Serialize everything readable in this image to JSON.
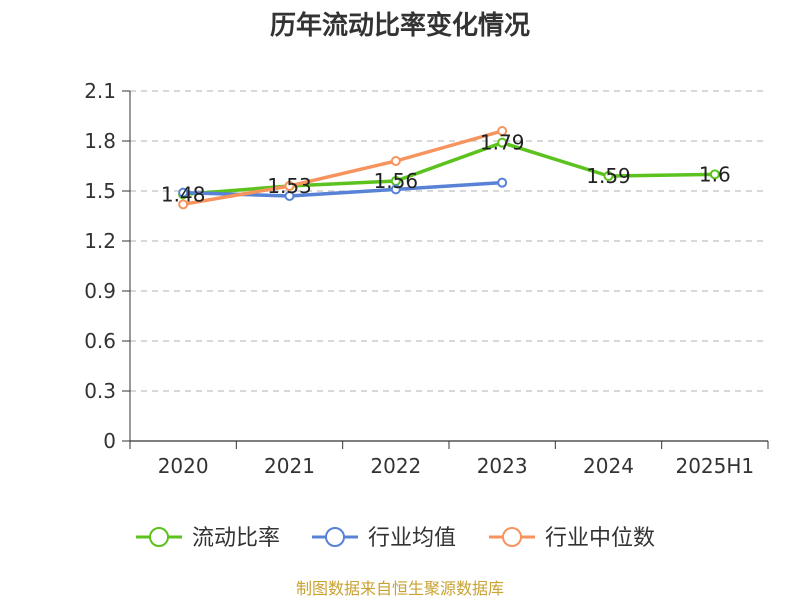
{
  "footer": {
    "source": "制图数据来自恒生聚源数据库"
  },
  "chart_data": {
    "type": "line",
    "title": "历年流动比率变化情况",
    "categories": [
      "2020",
      "2021",
      "2022",
      "2023",
      "2024",
      "2025H1"
    ],
    "ylim": [
      0,
      2.1
    ],
    "yticks": [
      "0",
      "0.3",
      "0.6",
      "0.9",
      "1.2",
      "1.5",
      "1.8",
      "2.1"
    ],
    "grid": true,
    "legend_position": "bottom",
    "series": [
      {
        "name": "流动比率",
        "color": "#5cc21d",
        "values": [
          1.48,
          1.53,
          1.56,
          1.79,
          1.59,
          1.6
        ],
        "labels": [
          "1.48",
          "1.53",
          "1.56",
          "1.79",
          "1.59",
          "1.6"
        ]
      },
      {
        "name": "行业均值",
        "color": "#5782d6",
        "values": [
          1.49,
          1.47,
          1.51,
          1.55,
          null,
          null
        ],
        "labels": []
      },
      {
        "name": "行业中位数",
        "color": "#f7935d",
        "values": [
          1.42,
          1.53,
          1.68,
          1.86,
          null,
          null
        ],
        "labels": []
      }
    ]
  }
}
